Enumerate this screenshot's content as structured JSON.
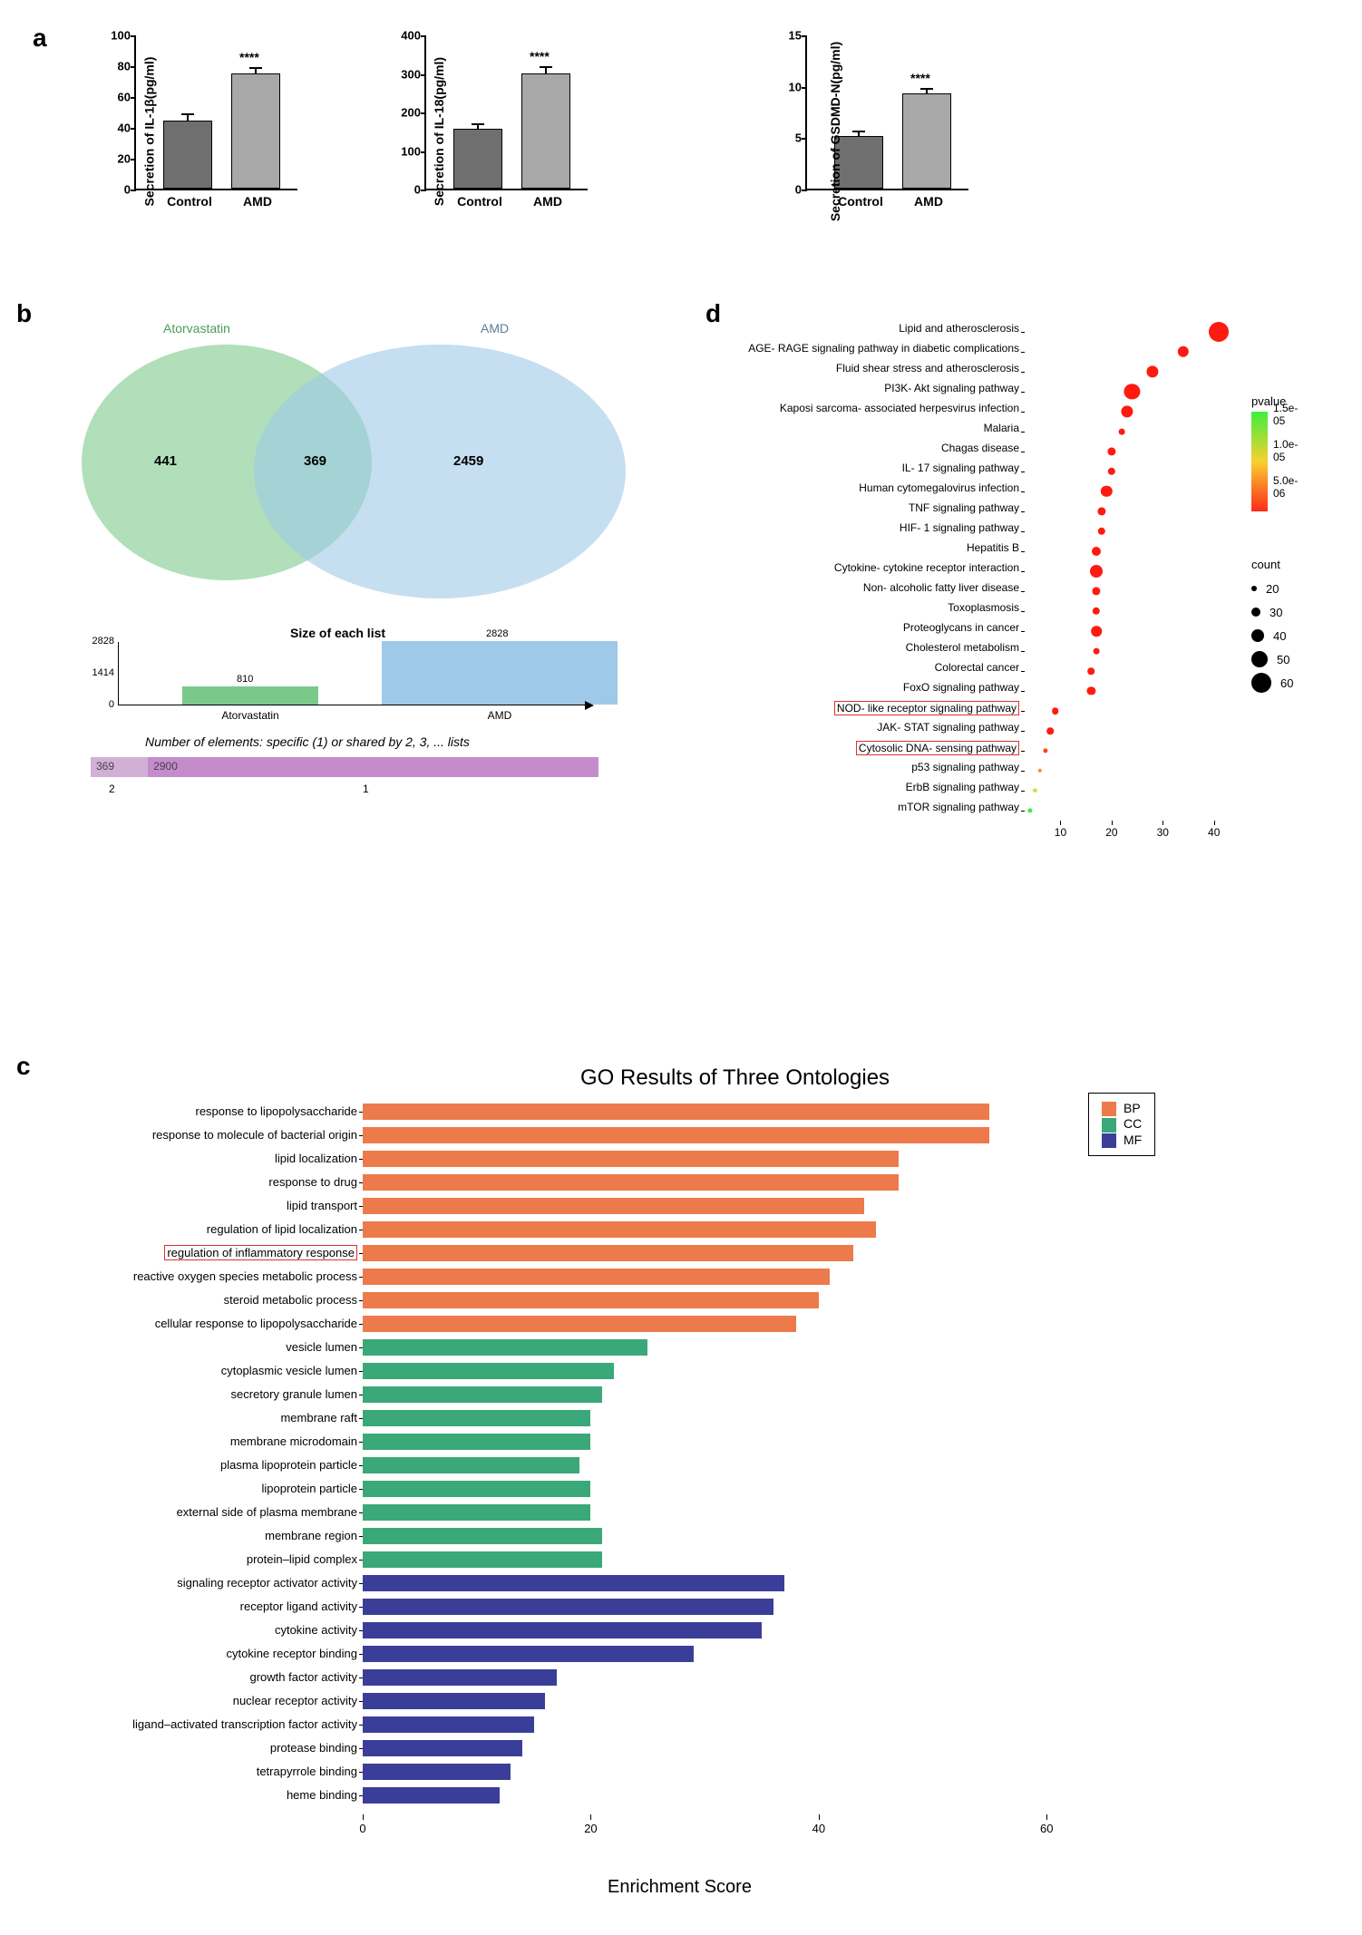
{
  "panel_labels": {
    "a": "a",
    "b": "b",
    "c": "c",
    "d": "d"
  },
  "panel_a": {
    "charts": [
      {
        "ylabel": "Secretion of IL-1β(pg/ml)",
        "categories": [
          "Control",
          "AMD"
        ],
        "values": [
          44,
          75
        ],
        "err": [
          4,
          3
        ],
        "ylim": [
          0,
          100
        ],
        "ystep": 20,
        "sig": "****"
      },
      {
        "ylabel": "Secretion of IL-18(pg/ml)",
        "categories": [
          "Control",
          "AMD"
        ],
        "values": [
          155,
          300
        ],
        "err": [
          12,
          15
        ],
        "ylim": [
          0,
          400
        ],
        "ystep": 100,
        "sig": "****"
      },
      {
        "ylabel": "Secretion of GSDMD-N(pg/ml)",
        "categories": [
          "Control",
          "AMD"
        ],
        "values": [
          5.1,
          9.3
        ],
        "err": [
          0.5,
          0.4
        ],
        "ylim": [
          0,
          15
        ],
        "ystep": 5,
        "sig": "****"
      }
    ],
    "bar_colors": [
      "#6f6f6f",
      "#a8a8a8"
    ]
  },
  "panel_b": {
    "venn": {
      "left_label": "Atorvastatin",
      "right_label": "AMD",
      "left_only": "441",
      "overlap": "369",
      "right_only": "2459",
      "left_color": "#7bc98a",
      "right_color": "#9fc9e8"
    },
    "size_title": "Size of each list",
    "size_bars": [
      {
        "name": "Atorvastatin",
        "value": 810,
        "color": "#7bc98a"
      },
      {
        "name": "AMD",
        "value": 2828,
        "color": "#9fc9e8"
      }
    ],
    "size_max": 2828,
    "size_ticks": [
      "0",
      "1414",
      "2828"
    ],
    "overlap_title": "Number of elements: specific (1) or shared by 2, 3, ... lists",
    "overlap_bars": [
      {
        "label": "369",
        "color": "#d2b0d6",
        "value": 369
      },
      {
        "label": "2900",
        "color": "#c58ccc",
        "value": 2900
      }
    ],
    "overlap_x": [
      "2",
      "1"
    ]
  },
  "panel_d": {
    "rows": [
      {
        "label": "Lipid and atherosclerosis",
        "x": 41,
        "count": 60,
        "color": "#ff1a10"
      },
      {
        "label": "AGE- RAGE signaling pathway in diabetic complications",
        "x": 34,
        "count": 36,
        "color": "#ff1a10"
      },
      {
        "label": "Fluid shear stress and atherosclerosis",
        "x": 28,
        "count": 38,
        "color": "#ff1a10"
      },
      {
        "label": "PI3K- Akt signaling pathway",
        "x": 24,
        "count": 48,
        "color": "#ff1a10"
      },
      {
        "label": "Kaposi sarcoma- associated herpesvirus infection",
        "x": 23,
        "count": 38,
        "color": "#ff1a10"
      },
      {
        "label": "Malaria",
        "x": 22,
        "count": 22,
        "color": "#ff1a10"
      },
      {
        "label": "Chagas disease",
        "x": 20,
        "count": 28,
        "color": "#ff1a10"
      },
      {
        "label": "IL- 17 signaling pathway",
        "x": 20,
        "count": 26,
        "color": "#ff1a10"
      },
      {
        "label": "Human cytomegalovirus infection",
        "x": 19,
        "count": 36,
        "color": "#ff1a10"
      },
      {
        "label": "TNF signaling pathway",
        "x": 18,
        "count": 28,
        "color": "#ff1a10"
      },
      {
        "label": "HIF- 1 signaling pathway",
        "x": 18,
        "count": 26,
        "color": "#ff1a10"
      },
      {
        "label": "Hepatitis B",
        "x": 17,
        "count": 30,
        "color": "#ff1a10"
      },
      {
        "label": "Cytokine- cytokine receptor interaction",
        "x": 17,
        "count": 40,
        "color": "#ff1a10"
      },
      {
        "label": "Non- alcoholic fatty liver disease",
        "x": 17,
        "count": 28,
        "color": "#ff1a10"
      },
      {
        "label": "Toxoplasmosis",
        "x": 17,
        "count": 26,
        "color": "#ff1a10"
      },
      {
        "label": "Proteoglycans in cancer",
        "x": 17,
        "count": 34,
        "color": "#ff1a10"
      },
      {
        "label": "Cholesterol metabolism",
        "x": 17,
        "count": 22,
        "color": "#ff1a10"
      },
      {
        "label": "Colorectal cancer",
        "x": 16,
        "count": 24,
        "color": "#ff1a10"
      },
      {
        "label": "FoxO signaling pathway",
        "x": 16,
        "count": 28,
        "color": "#ff1a10"
      },
      {
        "label": "NOD- like receptor signaling pathway",
        "x": 9,
        "count": 24,
        "color": "#ff1a10",
        "hl": true
      },
      {
        "label": "JAK- STAT signaling pathway",
        "x": 8,
        "count": 24,
        "color": "#ff1a10"
      },
      {
        "label": "Cytosolic DNA- sensing pathway",
        "x": 7,
        "count": 18,
        "color": "#ff4020",
        "hl": true
      },
      {
        "label": "p53 signaling pathway",
        "x": 6,
        "count": 16,
        "color": "#ff8a20"
      },
      {
        "label": "ErbB signaling pathway",
        "x": 5,
        "count": 16,
        "color": "#cfe030"
      },
      {
        "label": "mTOR signaling pathway",
        "x": 4,
        "count": 18,
        "color": "#3eef3e"
      }
    ],
    "xticks": [
      10,
      20,
      30,
      40
    ],
    "x_range": [
      3,
      42
    ],
    "count_sizes": [
      20,
      30,
      40,
      50,
      60
    ],
    "pvalue_labels": [
      "1.5e- 05",
      "1.0e- 05",
      "5.0e- 06"
    ],
    "legend_titles": {
      "pvalue": "pvalue",
      "count": "count"
    }
  },
  "panel_c": {
    "title": "GO Results of Three Ontologies",
    "xlabel": "Enrichment Score",
    "xticks": [
      0,
      20,
      40,
      60
    ],
    "xrange": [
      0,
      70
    ],
    "legend": [
      {
        "name": "BP",
        "color": "#ed7a4a"
      },
      {
        "name": "CC",
        "color": "#3aa879"
      },
      {
        "name": "MF",
        "color": "#3b3e99"
      }
    ],
    "rows": [
      {
        "label": "response to lipopolysaccharide",
        "v": 55,
        "g": "BP"
      },
      {
        "label": "response to molecule of bacterial origin",
        "v": 55,
        "g": "BP"
      },
      {
        "label": "lipid localization",
        "v": 47,
        "g": "BP"
      },
      {
        "label": "response to drug",
        "v": 47,
        "g": "BP"
      },
      {
        "label": "lipid transport",
        "v": 44,
        "g": "BP"
      },
      {
        "label": "regulation of lipid localization",
        "v": 45,
        "g": "BP"
      },
      {
        "label": "regulation of inflammatory response",
        "v": 43,
        "g": "BP",
        "hl": true
      },
      {
        "label": "reactive oxygen species metabolic process",
        "v": 41,
        "g": "BP"
      },
      {
        "label": "steroid metabolic process",
        "v": 40,
        "g": "BP"
      },
      {
        "label": "cellular response to lipopolysaccharide",
        "v": 38,
        "g": "BP"
      },
      {
        "label": "vesicle lumen",
        "v": 25,
        "g": "CC"
      },
      {
        "label": "cytoplasmic vesicle lumen",
        "v": 22,
        "g": "CC"
      },
      {
        "label": "secretory granule lumen",
        "v": 21,
        "g": "CC"
      },
      {
        "label": "membrane raft",
        "v": 20,
        "g": "CC"
      },
      {
        "label": "membrane microdomain",
        "v": 20,
        "g": "CC"
      },
      {
        "label": "plasma lipoprotein particle",
        "v": 19,
        "g": "CC"
      },
      {
        "label": "lipoprotein particle",
        "v": 20,
        "g": "CC"
      },
      {
        "label": "external side of plasma membrane",
        "v": 20,
        "g": "CC"
      },
      {
        "label": "membrane region",
        "v": 21,
        "g": "CC"
      },
      {
        "label": "protein–lipid complex",
        "v": 21,
        "g": "CC"
      },
      {
        "label": "signaling receptor activator activity",
        "v": 37,
        "g": "MF"
      },
      {
        "label": "receptor ligand activity",
        "v": 36,
        "g": "MF"
      },
      {
        "label": "cytokine activity",
        "v": 35,
        "g": "MF"
      },
      {
        "label": "cytokine receptor binding",
        "v": 29,
        "g": "MF"
      },
      {
        "label": "growth factor activity",
        "v": 17,
        "g": "MF"
      },
      {
        "label": "nuclear receptor activity",
        "v": 16,
        "g": "MF"
      },
      {
        "label": "ligand–activated transcription factor activity",
        "v": 15,
        "g": "MF"
      },
      {
        "label": "protease binding",
        "v": 14,
        "g": "MF"
      },
      {
        "label": "tetrapyrrole binding",
        "v": 13,
        "g": "MF"
      },
      {
        "label": "heme binding",
        "v": 12,
        "g": "MF"
      }
    ]
  }
}
